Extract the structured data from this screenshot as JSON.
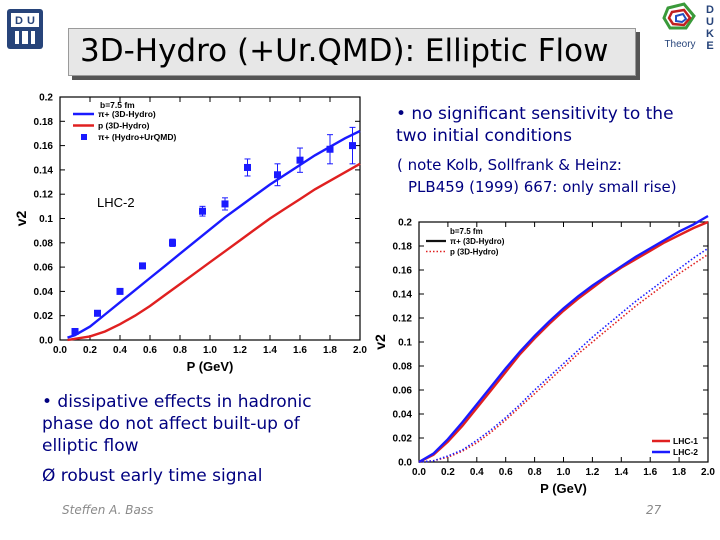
{
  "logo_left": {
    "letters": [
      "D",
      "U"
    ]
  },
  "logo_right": {
    "name": "Theory",
    "letters": [
      "D",
      "U",
      "K",
      "E"
    ]
  },
  "title": "3D-Hydro (+Ur.QMD): Elliptic Flow",
  "bullets": {
    "sensitivity": [
      "• no significant sensitivity to the",
      "two initial conditions"
    ],
    "note": [
      "( note Kolb, Sollfrank & Heinz:",
      "PLB459 (1999) 667: only small rise)"
    ],
    "dissipative": [
      "• dissipative effects in hadronic",
      "phase do not affect built-up of",
      "elliptic flow"
    ],
    "robust": "Ø robust early time signal"
  },
  "footer": {
    "author": "Steffen A. Bass",
    "page": "27"
  },
  "chart_data": [
    {
      "type": "line",
      "title": "",
      "xlabel": "P_T (GeV)",
      "ylabel": "v_2",
      "xlim": [
        0.0,
        2.0
      ],
      "ylim": [
        0.0,
        0.2
      ],
      "xticks": [
        "0.0",
        "0.2",
        "0.4",
        "0.6",
        "0.8",
        "1.0",
        "1.2",
        "1.4",
        "1.6",
        "1.8",
        "2.0"
      ],
      "yticks": [
        "0.0",
        "0.02",
        "0.04",
        "0.06",
        "0.08",
        "0.1",
        "0.12",
        "0.14",
        "0.16",
        "0.18",
        "0.2"
      ],
      "annotation": "LHC-2",
      "legend": {
        "placement": "top-left",
        "header": "b=7.5 fm",
        "entries": [
          "π+ (3D-Hydro)",
          "p (3D-Hydro)",
          "π+ (Hydro+UrQMD)"
        ]
      },
      "series": [
        {
          "name": "π+ (3D-Hydro)",
          "color": "#1a1aff",
          "style": "solid",
          "x": [
            0.05,
            0.1,
            0.2,
            0.3,
            0.4,
            0.5,
            0.6,
            0.7,
            0.8,
            0.9,
            1.0,
            1.1,
            1.2,
            1.3,
            1.4,
            1.5,
            1.6,
            1.7,
            1.8,
            1.9,
            2.0
          ],
          "y": [
            0.002,
            0.004,
            0.011,
            0.021,
            0.031,
            0.041,
            0.051,
            0.061,
            0.071,
            0.081,
            0.091,
            0.101,
            0.11,
            0.119,
            0.128,
            0.136,
            0.144,
            0.152,
            0.159,
            0.166,
            0.172
          ]
        },
        {
          "name": "p (3D-Hydro)",
          "color": "#e02020",
          "style": "solid",
          "x": [
            0.05,
            0.1,
            0.2,
            0.3,
            0.4,
            0.5,
            0.6,
            0.7,
            0.8,
            0.9,
            1.0,
            1.1,
            1.2,
            1.3,
            1.4,
            1.5,
            1.6,
            1.7,
            1.8,
            1.9,
            2.0
          ],
          "y": [
            0.0,
            0.001,
            0.003,
            0.007,
            0.013,
            0.02,
            0.028,
            0.037,
            0.046,
            0.055,
            0.064,
            0.073,
            0.082,
            0.091,
            0.1,
            0.108,
            0.116,
            0.124,
            0.131,
            0.138,
            0.145
          ]
        },
        {
          "name": "π+ (Hydro+UrQMD)",
          "color": "#1a1aff",
          "style": "markers",
          "x": [
            0.1,
            0.25,
            0.4,
            0.55,
            0.75,
            0.95,
            1.1,
            1.25,
            1.45,
            1.6,
            1.8,
            1.95
          ],
          "y": [
            0.007,
            0.022,
            0.04,
            0.061,
            0.08,
            0.106,
            0.112,
            0.142,
            0.136,
            0.148,
            0.157,
            0.16
          ],
          "err": [
            0.002,
            0.002,
            0.002,
            0.002,
            0.003,
            0.004,
            0.005,
            0.007,
            0.009,
            0.01,
            0.012,
            0.015
          ]
        }
      ]
    },
    {
      "type": "line",
      "title": "",
      "xlabel": "P_T (GeV)",
      "ylabel": "v_2",
      "xlim": [
        0.0,
        2.0
      ],
      "ylim": [
        0.0,
        0.2
      ],
      "xticks": [
        "0.0",
        "0.2",
        "0.4",
        "0.6",
        "0.8",
        "1.0",
        "1.2",
        "1.4",
        "1.6",
        "1.8",
        "2.0"
      ],
      "yticks": [
        "0.0",
        "0.02",
        "0.04",
        "0.06",
        "0.08",
        "0.1",
        "0.12",
        "0.14",
        "0.16",
        "0.18",
        "0.2"
      ],
      "legend": {
        "placement": "top-left",
        "header": "b=7.5 fm",
        "entries": [
          "π+ (3D-Hydro)",
          "p (3D-Hydro)"
        ],
        "series_legend": [
          "LHC-1",
          "LHC-2"
        ],
        "series_legend_placement": "bottom-right"
      },
      "series": [
        {
          "name": "LHC-1",
          "color": "#e02020",
          "style": "solid",
          "x": [
            0.0,
            0.1,
            0.2,
            0.3,
            0.4,
            0.5,
            0.6,
            0.7,
            0.8,
            0.9,
            1.0,
            1.1,
            1.2,
            1.3,
            1.4,
            1.5,
            1.6,
            1.7,
            1.8,
            1.9,
            2.0
          ],
          "y": [
            0.0,
            0.006,
            0.017,
            0.03,
            0.045,
            0.06,
            0.075,
            0.09,
            0.103,
            0.115,
            0.126,
            0.136,
            0.145,
            0.154,
            0.162,
            0.169,
            0.176,
            0.183,
            0.189,
            0.195,
            0.2
          ]
        },
        {
          "name": "LHC-2",
          "color": "#1a1aff",
          "style": "solid",
          "x": [
            0.0,
            0.1,
            0.2,
            0.3,
            0.4,
            0.5,
            0.6,
            0.7,
            0.8,
            0.9,
            1.0,
            1.1,
            1.2,
            1.3,
            1.4,
            1.5,
            1.6,
            1.7,
            1.8,
            1.9,
            2.0
          ],
          "y": [
            0.0,
            0.007,
            0.019,
            0.033,
            0.048,
            0.063,
            0.078,
            0.092,
            0.105,
            0.117,
            0.128,
            0.138,
            0.147,
            0.155,
            0.163,
            0.171,
            0.178,
            0.185,
            0.192,
            0.198,
            0.205
          ]
        },
        {
          "name": "p LHC-1",
          "color": "#e02020",
          "style": "dotted",
          "x": [
            0.0,
            0.1,
            0.2,
            0.3,
            0.4,
            0.5,
            0.6,
            0.7,
            0.8,
            0.9,
            1.0,
            1.1,
            1.2,
            1.3,
            1.4,
            1.5,
            1.6,
            1.7,
            1.8,
            1.9,
            2.0
          ],
          "y": [
            0.0,
            0.001,
            0.004,
            0.009,
            0.016,
            0.025,
            0.035,
            0.046,
            0.057,
            0.068,
            0.079,
            0.09,
            0.1,
            0.11,
            0.12,
            0.13,
            0.139,
            0.148,
            0.157,
            0.165,
            0.173
          ]
        },
        {
          "name": "p LHC-2",
          "color": "#1a1aff",
          "style": "dotted",
          "x": [
            0.0,
            0.1,
            0.2,
            0.3,
            0.4,
            0.5,
            0.6,
            0.7,
            0.8,
            0.9,
            1.0,
            1.1,
            1.2,
            1.3,
            1.4,
            1.5,
            1.6,
            1.7,
            1.8,
            1.9,
            2.0
          ],
          "y": [
            0.0,
            0.001,
            0.005,
            0.01,
            0.018,
            0.027,
            0.037,
            0.048,
            0.06,
            0.071,
            0.082,
            0.093,
            0.104,
            0.114,
            0.124,
            0.134,
            0.143,
            0.152,
            0.161,
            0.17,
            0.178
          ]
        }
      ]
    }
  ]
}
